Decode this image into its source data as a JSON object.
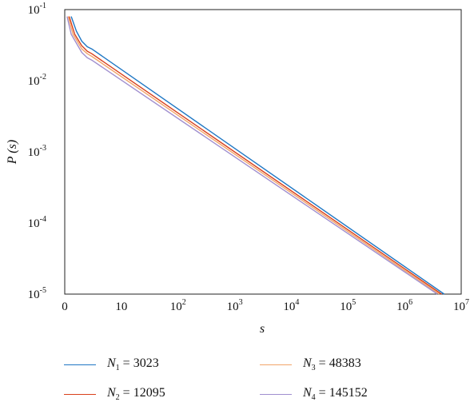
{
  "chart_data": {
    "type": "line",
    "title": "",
    "xlabel": "s",
    "ylabel": "P (s)",
    "xscale": "log",
    "yscale": "log",
    "xlim": [
      1,
      10000000
    ],
    "ylim": [
      1e-05,
      0.1
    ],
    "grid": false,
    "legend_position": "bottom",
    "x_ticks": [
      {
        "base": "0",
        "exp": ""
      },
      {
        "base": "10",
        "exp": ""
      },
      {
        "base": "10",
        "exp": "2"
      },
      {
        "base": "10",
        "exp": "3"
      },
      {
        "base": "10",
        "exp": "4"
      },
      {
        "base": "10",
        "exp": "5"
      },
      {
        "base": "10",
        "exp": "6"
      },
      {
        "base": "10",
        "exp": "7"
      }
    ],
    "y_ticks": [
      {
        "base": "10",
        "exp": "-1"
      },
      {
        "base": "10",
        "exp": "-2"
      },
      {
        "base": "10",
        "exp": "-3"
      },
      {
        "base": "10",
        "exp": "-4"
      },
      {
        "base": "10",
        "exp": "-5"
      }
    ],
    "series": [
      {
        "name": "N1 = 3023",
        "sym": "N",
        "sub": "1",
        "value": "3023",
        "color": "#1f77c4",
        "points": [
          [
            1.3,
            0.08
          ],
          [
            1.6,
            0.05
          ],
          [
            2.0,
            0.036
          ],
          [
            2.5,
            0.03
          ],
          [
            3.0,
            0.028
          ],
          [
            5000000,
            1e-05
          ]
        ]
      },
      {
        "name": "N2 = 12095",
        "sym": "N",
        "sub": "2",
        "value": "12095",
        "color": "#d9401b",
        "points": [
          [
            1.2,
            0.08
          ],
          [
            1.5,
            0.045
          ],
          [
            2.0,
            0.031
          ],
          [
            2.5,
            0.026
          ],
          [
            3.0,
            0.024
          ],
          [
            4500000,
            1e-05
          ]
        ]
      },
      {
        "name": "N3 = 48383",
        "sym": "N",
        "sub": "3",
        "value": "48383",
        "color": "#f2a56a",
        "points": [
          [
            1.15,
            0.08
          ],
          [
            1.4,
            0.045
          ],
          [
            2.0,
            0.028
          ],
          [
            2.5,
            0.024
          ],
          [
            3.0,
            0.022
          ],
          [
            4100000,
            1e-05
          ]
        ]
      },
      {
        "name": "N4 = 145152",
        "sym": "N",
        "sub": "4",
        "value": "145152",
        "color": "#a08fcf",
        "points": [
          [
            1.1,
            0.08
          ],
          [
            1.3,
            0.045
          ],
          [
            2.0,
            0.025
          ],
          [
            2.5,
            0.021
          ],
          [
            3.0,
            0.0195
          ],
          [
            3800000,
            1e-05
          ]
        ]
      }
    ]
  }
}
